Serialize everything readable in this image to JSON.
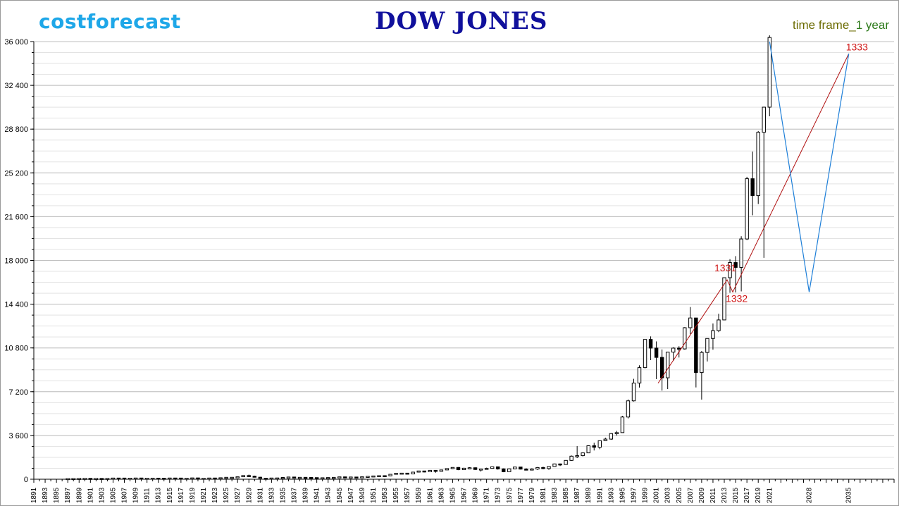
{
  "header": {
    "brand": "costforecast",
    "title": "DOW JONES",
    "timeframe_label": "time frame_",
    "timeframe_value": "1 year"
  },
  "colors": {
    "brand": "#1ea7e8",
    "title": "#10109c",
    "annotation": "#d01818",
    "forecast_zigzag": "#1e7fd8",
    "trend_line": "#b01010",
    "grid": "#bfbfbf"
  },
  "chart_data": {
    "type": "candlestick",
    "title": "DOW JONES",
    "xlabel": "",
    "ylabel": "",
    "xlim": [
      1891,
      2043
    ],
    "ylim": [
      0,
      36000
    ],
    "y_ticks": [
      0,
      3600,
      7200,
      10800,
      14400,
      18000,
      21600,
      25200,
      28800,
      32400,
      36000
    ],
    "y_tick_labels": [
      "0",
      "3 600",
      "7 200",
      "10 800",
      "14 400",
      "18 000",
      "21 600",
      "25 200",
      "28 800",
      "32 400",
      "36 000"
    ],
    "x_tick_labels": [
      "1891",
      "1893",
      "1895",
      "1897",
      "1899",
      "1901",
      "1903",
      "1905",
      "1907",
      "1909",
      "1911",
      "1913",
      "1915",
      "1917",
      "1919",
      "1921",
      "1923",
      "1925",
      "1927",
      "1929",
      "1931",
      "1933",
      "1935",
      "1937",
      "1939",
      "1941",
      "1943",
      "1945",
      "1947",
      "1949",
      "1951",
      "1953",
      "1955",
      "1957",
      "1959",
      "1961",
      "1963",
      "1965",
      "1967",
      "1969",
      "1971",
      "1973",
      "1975",
      "1977",
      "1979",
      "1981",
      "1983",
      "1985",
      "1987",
      "1989",
      "1991",
      "1993",
      "1995",
      "1997",
      "1999",
      "2001",
      "2003",
      "2005",
      "2007",
      "2009",
      "2011",
      "2013",
      "2015",
      "2017",
      "2019",
      "2021",
      "2028",
      "2035"
    ],
    "grid": true,
    "candles": [
      {
        "year": 1897,
        "open": 40,
        "high": 55,
        "low": 38,
        "close": 50
      },
      {
        "year": 1898,
        "open": 50,
        "high": 62,
        "low": 42,
        "close": 60
      },
      {
        "year": 1899,
        "open": 60,
        "high": 77,
        "low": 58,
        "close": 66
      },
      {
        "year": 1900,
        "open": 66,
        "high": 71,
        "low": 53,
        "close": 70
      },
      {
        "year": 1901,
        "open": 70,
        "high": 78,
        "low": 61,
        "close": 64
      },
      {
        "year": 1902,
        "open": 64,
        "high": 68,
        "low": 59,
        "close": 64
      },
      {
        "year": 1903,
        "open": 64,
        "high": 66,
        "low": 42,
        "close": 49
      },
      {
        "year": 1904,
        "open": 49,
        "high": 73,
        "low": 46,
        "close": 69
      },
      {
        "year": 1905,
        "open": 69,
        "high": 96,
        "low": 68,
        "close": 96
      },
      {
        "year": 1906,
        "open": 96,
        "high": 103,
        "low": 85,
        "close": 94
      },
      {
        "year": 1907,
        "open": 94,
        "high": 96,
        "low": 53,
        "close": 59
      },
      {
        "year": 1908,
        "open": 59,
        "high": 88,
        "low": 58,
        "close": 86
      },
      {
        "year": 1909,
        "open": 86,
        "high": 100,
        "low": 79,
        "close": 99
      },
      {
        "year": 1910,
        "open": 99,
        "high": 99,
        "low": 73,
        "close": 82
      },
      {
        "year": 1911,
        "open": 82,
        "high": 87,
        "low": 73,
        "close": 82
      },
      {
        "year": 1912,
        "open": 82,
        "high": 94,
        "low": 80,
        "close": 88
      },
      {
        "year": 1913,
        "open": 88,
        "high": 88,
        "low": 72,
        "close": 79
      },
      {
        "year": 1914,
        "open": 79,
        "high": 83,
        "low": 53,
        "close": 54
      },
      {
        "year": 1915,
        "open": 54,
        "high": 99,
        "low": 54,
        "close": 99
      },
      {
        "year": 1916,
        "open": 99,
        "high": 110,
        "low": 84,
        "close": 95
      },
      {
        "year": 1917,
        "open": 95,
        "high": 99,
        "low": 65,
        "close": 74
      },
      {
        "year": 1918,
        "open": 74,
        "high": 89,
        "low": 73,
        "close": 82
      },
      {
        "year": 1919,
        "open": 82,
        "high": 119,
        "low": 79,
        "close": 107
      },
      {
        "year": 1920,
        "open": 107,
        "high": 109,
        "low": 66,
        "close": 72
      },
      {
        "year": 1921,
        "open": 72,
        "high": 81,
        "low": 63,
        "close": 81
      },
      {
        "year": 1922,
        "open": 81,
        "high": 103,
        "low": 78,
        "close": 99
      },
      {
        "year": 1923,
        "open": 99,
        "high": 105,
        "low": 85,
        "close": 95
      },
      {
        "year": 1924,
        "open": 95,
        "high": 120,
        "low": 88,
        "close": 120
      },
      {
        "year": 1925,
        "open": 120,
        "high": 159,
        "low": 115,
        "close": 156
      },
      {
        "year": 1926,
        "open": 156,
        "high": 166,
        "low": 135,
        "close": 157
      },
      {
        "year": 1927,
        "open": 157,
        "high": 202,
        "low": 152,
        "close": 200
      },
      {
        "year": 1928,
        "open": 200,
        "high": 300,
        "low": 191,
        "close": 300
      },
      {
        "year": 1929,
        "open": 300,
        "high": 381,
        "low": 198,
        "close": 248
      },
      {
        "year": 1930,
        "open": 248,
        "high": 294,
        "low": 157,
        "close": 164
      },
      {
        "year": 1931,
        "open": 164,
        "high": 194,
        "low": 73,
        "close": 77
      },
      {
        "year": 1932,
        "open": 77,
        "high": 88,
        "low": 41,
        "close": 59
      },
      {
        "year": 1933,
        "open": 59,
        "high": 108,
        "low": 50,
        "close": 99
      },
      {
        "year": 1934,
        "open": 99,
        "high": 110,
        "low": 85,
        "close": 104
      },
      {
        "year": 1935,
        "open": 104,
        "high": 148,
        "low": 96,
        "close": 144
      },
      {
        "year": 1936,
        "open": 144,
        "high": 184,
        "low": 143,
        "close": 180
      },
      {
        "year": 1937,
        "open": 180,
        "high": 194,
        "low": 113,
        "close": 121
      },
      {
        "year": 1938,
        "open": 121,
        "high": 158,
        "low": 99,
        "close": 155
      },
      {
        "year": 1939,
        "open": 155,
        "high": 155,
        "low": 121,
        "close": 150
      },
      {
        "year": 1940,
        "open": 150,
        "high": 152,
        "low": 111,
        "close": 131
      },
      {
        "year": 1941,
        "open": 131,
        "high": 133,
        "low": 106,
        "close": 111
      },
      {
        "year": 1942,
        "open": 111,
        "high": 119,
        "low": 93,
        "close": 119
      },
      {
        "year": 1943,
        "open": 119,
        "high": 145,
        "low": 119,
        "close": 136
      },
      {
        "year": 1944,
        "open": 136,
        "high": 152,
        "low": 134,
        "close": 152
      },
      {
        "year": 1945,
        "open": 152,
        "high": 196,
        "low": 151,
        "close": 193
      },
      {
        "year": 1946,
        "open": 193,
        "high": 213,
        "low": 163,
        "close": 177
      },
      {
        "year": 1947,
        "open": 177,
        "high": 187,
        "low": 163,
        "close": 181
      },
      {
        "year": 1948,
        "open": 181,
        "high": 193,
        "low": 165,
        "close": 177
      },
      {
        "year": 1949,
        "open": 177,
        "high": 200,
        "low": 161,
        "close": 200
      },
      {
        "year": 1950,
        "open": 200,
        "high": 235,
        "low": 196,
        "close": 235
      },
      {
        "year": 1951,
        "open": 235,
        "high": 276,
        "low": 239,
        "close": 269
      },
      {
        "year": 1952,
        "open": 269,
        "high": 292,
        "low": 256,
        "close": 291
      },
      {
        "year": 1953,
        "open": 291,
        "high": 293,
        "low": 255,
        "close": 281
      },
      {
        "year": 1954,
        "open": 281,
        "high": 404,
        "low": 279,
        "close": 404
      },
      {
        "year": 1955,
        "open": 404,
        "high": 488,
        "low": 388,
        "close": 488
      },
      {
        "year": 1956,
        "open": 488,
        "high": 521,
        "low": 462,
        "close": 499
      },
      {
        "year": 1957,
        "open": 499,
        "high": 520,
        "low": 419,
        "close": 435
      },
      {
        "year": 1958,
        "open": 435,
        "high": 583,
        "low": 436,
        "close": 583
      },
      {
        "year": 1959,
        "open": 583,
        "high": 679,
        "low": 574,
        "close": 679
      },
      {
        "year": 1960,
        "open": 679,
        "high": 685,
        "low": 566,
        "close": 615
      },
      {
        "year": 1961,
        "open": 615,
        "high": 734,
        "low": 610,
        "close": 731
      },
      {
        "year": 1962,
        "open": 731,
        "high": 726,
        "low": 535,
        "close": 652
      },
      {
        "year": 1963,
        "open": 652,
        "high": 767,
        "low": 646,
        "close": 762
      },
      {
        "year": 1964,
        "open": 762,
        "high": 891,
        "low": 766,
        "close": 874
      },
      {
        "year": 1965,
        "open": 874,
        "high": 969,
        "low": 840,
        "close": 969
      },
      {
        "year": 1966,
        "open": 969,
        "high": 995,
        "low": 744,
        "close": 785
      },
      {
        "year": 1967,
        "open": 785,
        "high": 943,
        "low": 786,
        "close": 905
      },
      {
        "year": 1968,
        "open": 905,
        "high": 985,
        "low": 825,
        "close": 943
      },
      {
        "year": 1969,
        "open": 943,
        "high": 968,
        "low": 769,
        "close": 800
      },
      {
        "year": 1970,
        "open": 800,
        "high": 842,
        "low": 631,
        "close": 838
      },
      {
        "year": 1971,
        "open": 838,
        "high": 950,
        "low": 797,
        "close": 890
      },
      {
        "year": 1972,
        "open": 890,
        "high": 1036,
        "low": 889,
        "close": 1020
      },
      {
        "year": 1973,
        "open": 1020,
        "high": 1051,
        "low": 788,
        "close": 850
      },
      {
        "year": 1974,
        "open": 850,
        "high": 891,
        "low": 577,
        "close": 616
      },
      {
        "year": 1975,
        "open": 616,
        "high": 881,
        "low": 632,
        "close": 852
      },
      {
        "year": 1976,
        "open": 852,
        "high": 1014,
        "low": 858,
        "close": 1004
      },
      {
        "year": 1977,
        "open": 1004,
        "high": 999,
        "low": 800,
        "close": 831
      },
      {
        "year": 1978,
        "open": 831,
        "high": 907,
        "low": 742,
        "close": 805
      },
      {
        "year": 1979,
        "open": 805,
        "high": 897,
        "low": 796,
        "close": 838
      },
      {
        "year": 1980,
        "open": 838,
        "high": 1000,
        "low": 759,
        "close": 963
      },
      {
        "year": 1981,
        "open": 963,
        "high": 1024,
        "low": 824,
        "close": 875
      },
      {
        "year": 1982,
        "open": 875,
        "high": 1070,
        "low": 776,
        "close": 1046
      },
      {
        "year": 1983,
        "open": 1046,
        "high": 1287,
        "low": 1027,
        "close": 1258
      },
      {
        "year": 1984,
        "open": 1258,
        "high": 1287,
        "low": 1086,
        "close": 1211
      },
      {
        "year": 1985,
        "open": 1211,
        "high": 1553,
        "low": 1184,
        "close": 1546
      },
      {
        "year": 1986,
        "open": 1546,
        "high": 1955,
        "low": 1502,
        "close": 1895
      },
      {
        "year": 1987,
        "open": 1895,
        "high": 2722,
        "low": 1738,
        "close": 1938
      },
      {
        "year": 1988,
        "open": 1938,
        "high": 2183,
        "low": 1879,
        "close": 2168
      },
      {
        "year": 1989,
        "open": 2168,
        "high": 2791,
        "low": 2144,
        "close": 2753
      },
      {
        "year": 1990,
        "open": 2753,
        "high": 2999,
        "low": 2365,
        "close": 2633
      },
      {
        "year": 1991,
        "open": 2633,
        "high": 3168,
        "low": 2470,
        "close": 3168
      },
      {
        "year": 1992,
        "open": 3168,
        "high": 3413,
        "low": 3136,
        "close": 3301
      },
      {
        "year": 1993,
        "open": 3301,
        "high": 3794,
        "low": 3241,
        "close": 3754
      },
      {
        "year": 1994,
        "open": 3754,
        "high": 3978,
        "low": 3593,
        "close": 3834
      },
      {
        "year": 1995,
        "open": 3834,
        "high": 5216,
        "low": 3832,
        "close": 5117
      },
      {
        "year": 1996,
        "open": 5117,
        "high": 6560,
        "low": 5000,
        "close": 6448
      },
      {
        "year": 1997,
        "open": 6448,
        "high": 8259,
        "low": 6391,
        "close": 7908
      },
      {
        "year": 1998,
        "open": 7908,
        "high": 9374,
        "low": 7539,
        "close": 9181
      },
      {
        "year": 1999,
        "open": 9181,
        "high": 11497,
        "low": 9121,
        "close": 11497
      },
      {
        "year": 2000,
        "open": 11497,
        "high": 11750,
        "low": 9796,
        "close": 10787
      },
      {
        "year": 2001,
        "open": 10787,
        "high": 11337,
        "low": 8236,
        "close": 10021
      },
      {
        "year": 2002,
        "open": 10021,
        "high": 10673,
        "low": 7286,
        "close": 8342
      },
      {
        "year": 2003,
        "open": 8342,
        "high": 10454,
        "low": 7416,
        "close": 10454
      },
      {
        "year": 2004,
        "open": 10454,
        "high": 10854,
        "low": 9750,
        "close": 10783
      },
      {
        "year": 2005,
        "open": 10783,
        "high": 10940,
        "low": 10012,
        "close": 10718
      },
      {
        "year": 2006,
        "open": 10718,
        "high": 12510,
        "low": 10667,
        "close": 12463
      },
      {
        "year": 2007,
        "open": 12463,
        "high": 14164,
        "low": 11939,
        "close": 13265
      },
      {
        "year": 2008,
        "open": 13265,
        "high": 13279,
        "low": 7552,
        "close": 8776
      },
      {
        "year": 2009,
        "open": 8776,
        "high": 10548,
        "low": 6547,
        "close": 10428
      },
      {
        "year": 2010,
        "open": 10428,
        "high": 11585,
        "low": 9686,
        "close": 11578
      },
      {
        "year": 2011,
        "open": 11578,
        "high": 12810,
        "low": 10655,
        "close": 12218
      },
      {
        "year": 2012,
        "open": 12218,
        "high": 13610,
        "low": 12101,
        "close": 13104
      },
      {
        "year": 2013,
        "open": 13104,
        "high": 16577,
        "low": 13104,
        "close": 16577
      },
      {
        "year": 2014,
        "open": 16577,
        "high": 18103,
        "low": 15340,
        "close": 17823
      },
      {
        "year": 2015,
        "open": 17823,
        "high": 18351,
        "low": 15370,
        "close": 17425
      },
      {
        "year": 2016,
        "open": 17425,
        "high": 19987,
        "low": 15450,
        "close": 19763
      },
      {
        "year": 2017,
        "open": 19763,
        "high": 24876,
        "low": 19677,
        "close": 24719
      },
      {
        "year": 2018,
        "open": 24719,
        "high": 26951,
        "low": 21713,
        "close": 23327
      },
      {
        "year": 2019,
        "open": 23327,
        "high": 28645,
        "low": 22638,
        "close": 28538
      },
      {
        "year": 2020,
        "open": 28538,
        "high": 30637,
        "low": 18213,
        "close": 30606
      },
      {
        "year": 2021,
        "open": 30606,
        "high": 36513,
        "low": 29857,
        "close": 36338
      }
    ],
    "forecast_zigzag": [
      {
        "x": 2021,
        "y": 36000
      },
      {
        "x": 2028,
        "y": 15400
      },
      {
        "x": 2035,
        "y": 35000
      }
    ],
    "trend_line": [
      {
        "x": 2001.3,
        "y": 7900
      },
      {
        "x": 2013.5,
        "y": 16400
      },
      {
        "x": 2014.5,
        "y": 15400
      },
      {
        "x": 2035,
        "y": 35000
      }
    ],
    "annotations": [
      {
        "text": "1331",
        "x": 2013.5,
        "y": 16400
      },
      {
        "text": "1332",
        "x": 2014.5,
        "y": 15400
      },
      {
        "text": "1333",
        "x": 2035,
        "y": 35000
      }
    ]
  }
}
